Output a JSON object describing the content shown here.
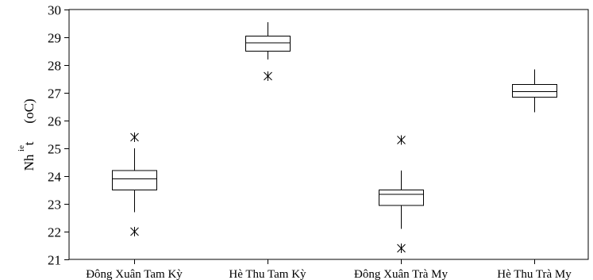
{
  "chart_data": {
    "type": "boxplot",
    "ylabel_main": "Nh",
    "ylabel_super": "ie",
    "ylabel_mid": "t",
    "ylabel_unit": "(oC)",
    "ylim": [
      21,
      30
    ],
    "yticks": [
      21,
      22,
      23,
      24,
      25,
      26,
      27,
      28,
      29,
      30
    ],
    "grid": false,
    "categories": [
      "Đông Xuân Tam Kỳ",
      "Hè Thu Tam Kỳ",
      "Đông Xuân Trà My",
      "Hè Thu Trà My"
    ],
    "boxes": [
      {
        "whisker_low": 22.7,
        "q1": 23.5,
        "median": 23.9,
        "q3": 24.2,
        "whisker_high": 25.0,
        "outliers": [
          22.0,
          25.4
        ]
      },
      {
        "whisker_low": 28.2,
        "q1": 28.5,
        "median": 28.8,
        "q3": 29.05,
        "whisker_high": 29.55,
        "outliers": [
          27.6
        ]
      },
      {
        "whisker_low": 22.1,
        "q1": 22.95,
        "median": 23.35,
        "q3": 23.5,
        "whisker_high": 24.2,
        "outliers": [
          21.4,
          25.3
        ]
      },
      {
        "whisker_low": 26.3,
        "q1": 26.85,
        "median": 27.05,
        "q3": 27.3,
        "whisker_high": 27.85,
        "outliers": []
      }
    ]
  }
}
